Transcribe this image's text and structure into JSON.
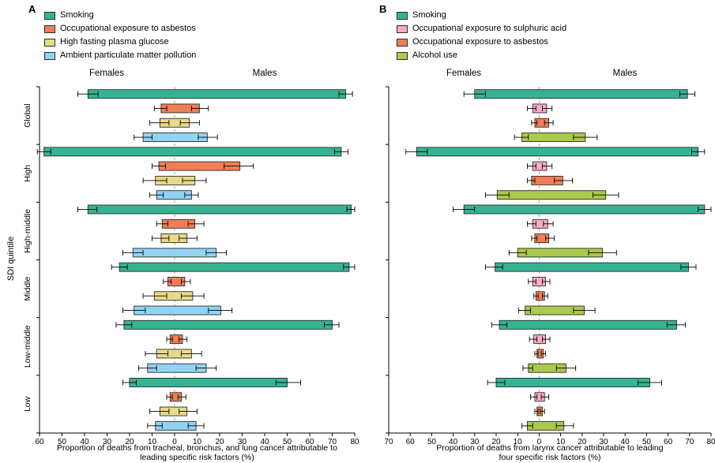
{
  "figure": {
    "y_axis_label": "SDI quintile",
    "sdi_groups": [
      "Global",
      "High",
      "High-middle",
      "Middle",
      "Low-middle",
      "Low"
    ]
  },
  "chart_data": [
    {
      "type": "bar",
      "panel_label": "A",
      "orientation": "horizontal-diverging",
      "female_label": "Females",
      "male_label": "Males",
      "xlabel": "Proportion of deaths from tracheal, bronchus, and lung cancer attributable to leading specific risk factors (%)",
      "x_axis": {
        "female_max": 60,
        "male_max": 80,
        "tick_step": 10
      },
      "categories": [
        "Global",
        "High",
        "High-middle",
        "Middle",
        "Low-middle",
        "Low"
      ],
      "series": [
        {
          "name": "Smoking",
          "color": "#35b393",
          "female": [
            38.5,
            58,
            38.5,
            24.5,
            22.5,
            20
          ],
          "female_ci": [
            [
              34,
              43
            ],
            [
              55,
              61
            ],
            [
              34.5,
              43
            ],
            [
              21,
              28
            ],
            [
              19,
              26
            ],
            [
              17,
              23
            ]
          ],
          "male": [
            76,
            74,
            78.5,
            77.5,
            70,
            50
          ],
          "male_ci": [
            [
              73,
              79
            ],
            [
              71,
              77
            ],
            [
              76.5,
              80
            ],
            [
              75,
              80
            ],
            [
              66.5,
              73
            ],
            [
              45,
              56
            ]
          ]
        },
        {
          "name": "Occupational exposure to asbestos",
          "color": "#ef7e56",
          "female": [
            6,
            7,
            5.5,
            3,
            2,
            2
          ],
          "female_ci": [
            [
              3.5,
              9
            ],
            [
              4,
              10
            ],
            [
              3,
              8
            ],
            [
              1.5,
              5
            ],
            [
              1,
              3.5
            ],
            [
              1,
              3.5
            ]
          ],
          "male": [
            11,
            29,
            9,
            4.5,
            3.5,
            3
          ],
          "male_ci": [
            [
              7.5,
              15
            ],
            [
              22,
              35
            ],
            [
              6,
              13
            ],
            [
              3,
              7
            ],
            [
              2,
              5.5
            ],
            [
              1.5,
              5
            ]
          ]
        },
        {
          "name": "High fasting plasma glucose",
          "color": "#e9da89",
          "female": [
            6.5,
            8.5,
            6,
            9,
            8,
            6.5
          ],
          "female_ci": [
            [
              2.5,
              11
            ],
            [
              3.5,
              14
            ],
            [
              2.5,
              10
            ],
            [
              3.5,
              14
            ],
            [
              3,
              13
            ],
            [
              2.5,
              11
            ]
          ],
          "male": [
            6.5,
            9,
            5.5,
            8,
            7.5,
            5.5
          ],
          "male_ci": [
            [
              2.5,
              11
            ],
            [
              3.5,
              14
            ],
            [
              2,
              10
            ],
            [
              3,
              13
            ],
            [
              3,
              12
            ],
            [
              2,
              10
            ]
          ]
        },
        {
          "name": "Ambient particulate matter pollution",
          "color": "#92d3f2",
          "female": [
            14,
            8,
            18.5,
            18,
            12,
            8.5
          ],
          "female_ci": [
            [
              10,
              18
            ],
            [
              5,
              11
            ],
            [
              14,
              23
            ],
            [
              13,
              23
            ],
            [
              8,
              16
            ],
            [
              5.5,
              12
            ]
          ],
          "male": [
            14.5,
            7.5,
            18.5,
            20.5,
            14,
            9.5
          ],
          "male_ci": [
            [
              10.5,
              19
            ],
            [
              4.5,
              10.5
            ],
            [
              14,
              23
            ],
            [
              15,
              25.5
            ],
            [
              9.5,
              18.5
            ],
            [
              6,
              13
            ]
          ]
        }
      ]
    },
    {
      "type": "bar",
      "panel_label": "B",
      "orientation": "horizontal-diverging",
      "female_label": "Females",
      "male_label": "Males",
      "xlabel": "Proportion of deaths from larynx cancer attributable to leading four specific risk factors (%)",
      "x_axis": {
        "female_max": 70,
        "male_max": 80,
        "tick_step": 10
      },
      "categories": [
        "Global",
        "High",
        "High-middle",
        "Middle",
        "Low-middle",
        "Low"
      ],
      "series": [
        {
          "name": "Smoking",
          "color": "#35b393",
          "female": [
            30,
            57,
            35,
            20.5,
            18.5,
            20
          ],
          "female_ci": [
            [
              25,
              35
            ],
            [
              52,
              62
            ],
            [
              30,
              40
            ],
            [
              17,
              25
            ],
            [
              15,
              22
            ],
            [
              16,
              24
            ]
          ],
          "male": [
            69,
            74,
            77,
            69.5,
            64,
            51.5
          ],
          "male_ci": [
            [
              65.5,
              72.5
            ],
            [
              71,
              77
            ],
            [
              74,
              80
            ],
            [
              66,
              73
            ],
            [
              59.5,
              68
            ],
            [
              46,
              57
            ]
          ]
        },
        {
          "name": "Occupational exposure to sulphuric acid",
          "color": "#f6abc8",
          "female": [
            3,
            3,
            3,
            3,
            2.5,
            2
          ],
          "female_ci": [
            [
              1.5,
              5.5
            ],
            [
              1.5,
              5.5
            ],
            [
              1.5,
              5.5
            ],
            [
              1.5,
              5
            ],
            [
              1,
              4.5
            ],
            [
              1,
              4
            ]
          ],
          "male": [
            3.5,
            3.5,
            4,
            3,
            3,
            2.5
          ],
          "male_ci": [
            [
              1.5,
              6
            ],
            [
              1.5,
              6
            ],
            [
              2,
              6.5
            ],
            [
              1.5,
              5
            ],
            [
              1.5,
              5
            ],
            [
              1,
              4.5
            ]
          ]
        },
        {
          "name": "Occupational exposure to asbestos",
          "color": "#ef7e56",
          "female": [
            2,
            3.5,
            2,
            1.5,
            1,
            1
          ],
          "female_ci": [
            [
              1,
              3.5
            ],
            [
              2,
              5.5
            ],
            [
              1,
              3.5
            ],
            [
              0.5,
              2.5
            ],
            [
              0.5,
              2
            ],
            [
              0.5,
              2
            ]
          ],
          "male": [
            4.5,
            11,
            4.5,
            2.5,
            2,
            1.5
          ],
          "male_ci": [
            [
              2.5,
              6.5
            ],
            [
              7,
              15.5
            ],
            [
              3,
              7
            ],
            [
              1.5,
              4
            ],
            [
              1,
              3
            ],
            [
              0.5,
              2.5
            ]
          ]
        },
        {
          "name": "Alcohol use",
          "color": "#abc94c",
          "female": [
            8,
            19.5,
            10,
            6.5,
            5,
            5.5
          ],
          "female_ci": [
            [
              5,
              11.5
            ],
            [
              14,
              25
            ],
            [
              6,
              14
            ],
            [
              4,
              9.5
            ],
            [
              3,
              7.5
            ],
            [
              3,
              8
            ]
          ],
          "male": [
            21.5,
            31,
            29.5,
            21,
            12.5,
            11.5
          ],
          "male_ci": [
            [
              16,
              27
            ],
            [
              25,
              37
            ],
            [
              23,
              36
            ],
            [
              16,
              26
            ],
            [
              8,
              17
            ],
            [
              8,
              16
            ]
          ]
        }
      ]
    }
  ]
}
